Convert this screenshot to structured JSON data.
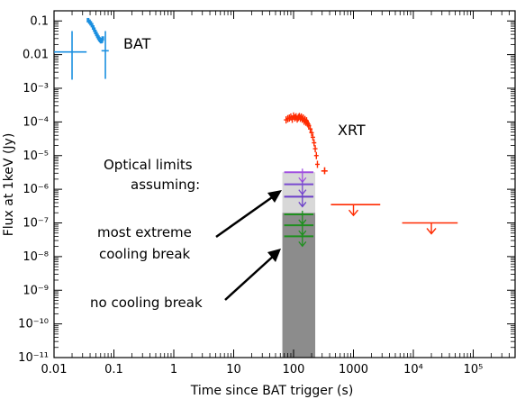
{
  "chart_data": {
    "type": "scatter",
    "title": "",
    "xlabel": "Time since BAT trigger (s)",
    "ylabel": "Flux at 1keV (Jy)",
    "x_scale": "log",
    "y_scale": "log",
    "xlim": [
      0.01,
      500000
    ],
    "ylim": [
      1e-11,
      0.2
    ],
    "x_ticks": [
      0.01,
      0.1,
      1,
      10,
      100,
      1000,
      10000,
      100000
    ],
    "x_tick_labels": [
      "0.01",
      "0.1",
      "1",
      "10",
      "100",
      "1000",
      "10⁴",
      "10⁵"
    ],
    "y_ticks": [
      0.1,
      0.01,
      0.001,
      0.0001,
      1e-05,
      1e-06,
      1e-07,
      1e-08,
      1e-09,
      1e-10,
      1e-11
    ],
    "y_tick_labels": [
      "0.1",
      "0.01",
      "10⁻³",
      "10⁻⁴",
      "10⁻⁵",
      "10⁻⁶",
      "10⁻⁷",
      "10⁻⁸",
      "10⁻⁹",
      "10⁻¹⁰",
      "10⁻¹¹"
    ],
    "series": [
      {
        "name": "BAT",
        "color": "#1a8fe0",
        "points": [
          {
            "x": 0.02,
            "y": 0.012,
            "xerr": [
              0.01,
              0.035
            ],
            "yerr": [
              0.0018,
              0.05
            ]
          },
          {
            "x": 0.072,
            "y": 0.013,
            "xerr": [
              0.062,
              0.082
            ],
            "yerr": [
              0.0019,
              0.05
            ]
          }
        ],
        "dense": [
          {
            "x": 0.037,
            "y": 0.105
          },
          {
            "x": 0.039,
            "y": 0.095
          },
          {
            "x": 0.041,
            "y": 0.085
          },
          {
            "x": 0.043,
            "y": 0.075
          },
          {
            "x": 0.045,
            "y": 0.064
          },
          {
            "x": 0.047,
            "y": 0.055
          },
          {
            "x": 0.049,
            "y": 0.047
          },
          {
            "x": 0.051,
            "y": 0.041
          },
          {
            "x": 0.053,
            "y": 0.036
          },
          {
            "x": 0.055,
            "y": 0.032
          },
          {
            "x": 0.057,
            "y": 0.029
          },
          {
            "x": 0.059,
            "y": 0.027
          },
          {
            "x": 0.061,
            "y": 0.025
          },
          {
            "x": 0.063,
            "y": 0.026
          },
          {
            "x": 0.065,
            "y": 0.03
          }
        ]
      },
      {
        "name": "XRT",
        "color": "#ff2a00",
        "dense": [
          {
            "x": 75,
            "y": 0.000115
          },
          {
            "x": 80,
            "y": 0.000125
          },
          {
            "x": 85,
            "y": 0.00013
          },
          {
            "x": 90,
            "y": 0.00014
          },
          {
            "x": 95,
            "y": 0.00012
          },
          {
            "x": 100,
            "y": 0.00015
          },
          {
            "x": 105,
            "y": 0.000132
          },
          {
            "x": 110,
            "y": 0.000142
          },
          {
            "x": 115,
            "y": 0.000122
          },
          {
            "x": 120,
            "y": 0.000135
          },
          {
            "x": 125,
            "y": 0.000145
          },
          {
            "x": 130,
            "y": 0.000128
          },
          {
            "x": 135,
            "y": 0.00014
          },
          {
            "x": 140,
            "y": 0.00012
          },
          {
            "x": 145,
            "y": 0.00013
          },
          {
            "x": 150,
            "y": 0.000105
          },
          {
            "x": 155,
            "y": 0.000118
          },
          {
            "x": 160,
            "y": 9.8e-05
          },
          {
            "x": 165,
            "y": 0.000108
          },
          {
            "x": 170,
            "y": 9.2e-05
          },
          {
            "x": 175,
            "y": 8.6e-05
          },
          {
            "x": 180,
            "y": 7.8e-05
          },
          {
            "x": 190,
            "y": 6.2e-05
          },
          {
            "x": 200,
            "y": 4.8e-05
          },
          {
            "x": 210,
            "y": 3.5e-05
          },
          {
            "x": 220,
            "y": 2.4e-05
          },
          {
            "x": 230,
            "y": 1.6e-05
          },
          {
            "x": 240,
            "y": 1e-05
          },
          {
            "x": 250,
            "y": 5.5e-06
          }
        ],
        "points": [
          {
            "x": 330,
            "y": 3.5e-06,
            "xerr": [
              290,
              370
            ],
            "yerr": [
              2.8e-06,
              4.5e-06
            ]
          }
        ],
        "upper_limits": [
          {
            "x": 1000,
            "y": 3.5e-07,
            "xlo": 420,
            "xhi": 2800
          },
          {
            "x": 20000,
            "y": 1e-07,
            "xlo": 6500,
            "xhi": 55000
          }
        ]
      },
      {
        "name": "Optical",
        "shaded_bands": [
          {
            "xlo": 65,
            "xhi": 230,
            "ylo": 1e-11,
            "yhi": 2e-07,
            "color": "#8c8c8c"
          },
          {
            "xlo": 65,
            "xhi": 230,
            "ylo": 2e-07,
            "yhi": 3.2e-06,
            "color": "#d8d8d8"
          }
        ],
        "limits": [
          {
            "y": 3.2e-06,
            "color": "#a050e0"
          },
          {
            "y": 1.4e-06,
            "color": "#7a4bd0"
          },
          {
            "y": 6e-07,
            "color": "#6b3fc8"
          },
          {
            "y": 1.8e-07,
            "color": "#1f8f1f"
          },
          {
            "y": 8.5e-08,
            "color": "#1f8f1f"
          },
          {
            "y": 4e-08,
            "color": "#1f8f1f"
          }
        ]
      }
    ],
    "labels": {
      "bat": "BAT",
      "xrt": "XRT"
    },
    "annotations": {
      "optical_line1": "Optical limits",
      "optical_line2": "assuming:",
      "extreme_line1": "most extreme",
      "extreme_line2": "cooling break",
      "no_cooling": "no cooling break"
    }
  }
}
